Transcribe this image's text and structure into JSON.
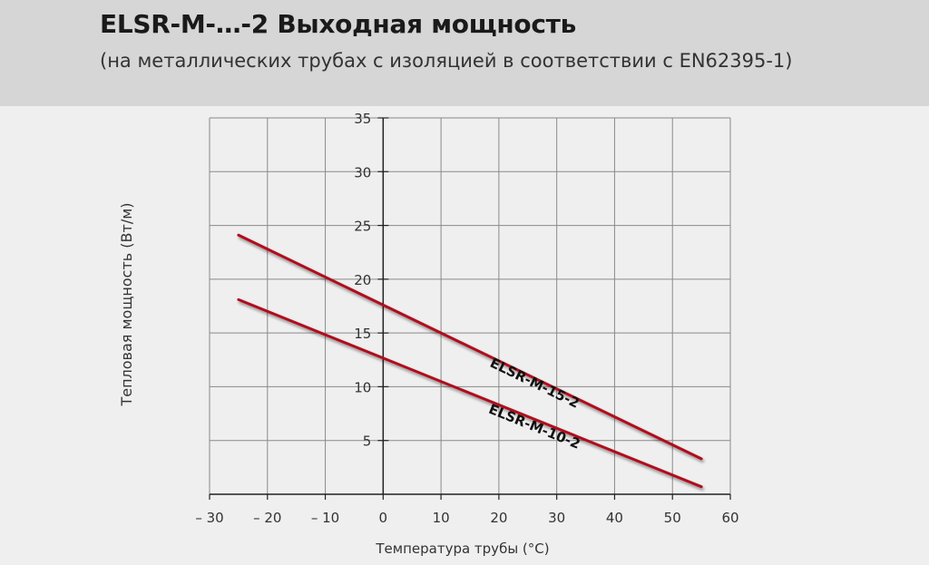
{
  "header": {
    "title": "ELSR-M-…-2 Выходная мощность",
    "subtitle": "(на металлических трубах с изоляцией в соответствии с EN62395-1)"
  },
  "colors": {
    "header_bg": "#d6d6d6",
    "plot_bg": "#efefef",
    "grid": "#8a8a8a",
    "series": "#b0101e"
  },
  "chart_data": {
    "type": "line",
    "title": "",
    "xlabel": "Температура трубы (°C)",
    "ylabel": "Тепловая мощность (Вт/м)",
    "xlim": [
      -30,
      60
    ],
    "ylim": [
      0,
      35
    ],
    "x_ticks": [
      -30,
      -20,
      -10,
      0,
      10,
      20,
      30,
      40,
      50,
      60
    ],
    "x_tick_labels": [
      "– 30",
      "– 20",
      "– 10",
      "0",
      "10",
      "20",
      "30",
      "40",
      "50",
      "60"
    ],
    "y_ticks": [
      5,
      10,
      15,
      20,
      25,
      30,
      35
    ],
    "y_tick_labels": [
      "5",
      "10",
      "15",
      "20",
      "25",
      "30",
      "35"
    ],
    "grid": true,
    "series": [
      {
        "name": "ELSR-M-15-2",
        "x": [
          -25,
          55
        ],
        "y": [
          24.1,
          3.3
        ]
      },
      {
        "name": "ELSR-M-10-2",
        "x": [
          -25,
          55
        ],
        "y": [
          18.1,
          0.7
        ]
      }
    ]
  }
}
